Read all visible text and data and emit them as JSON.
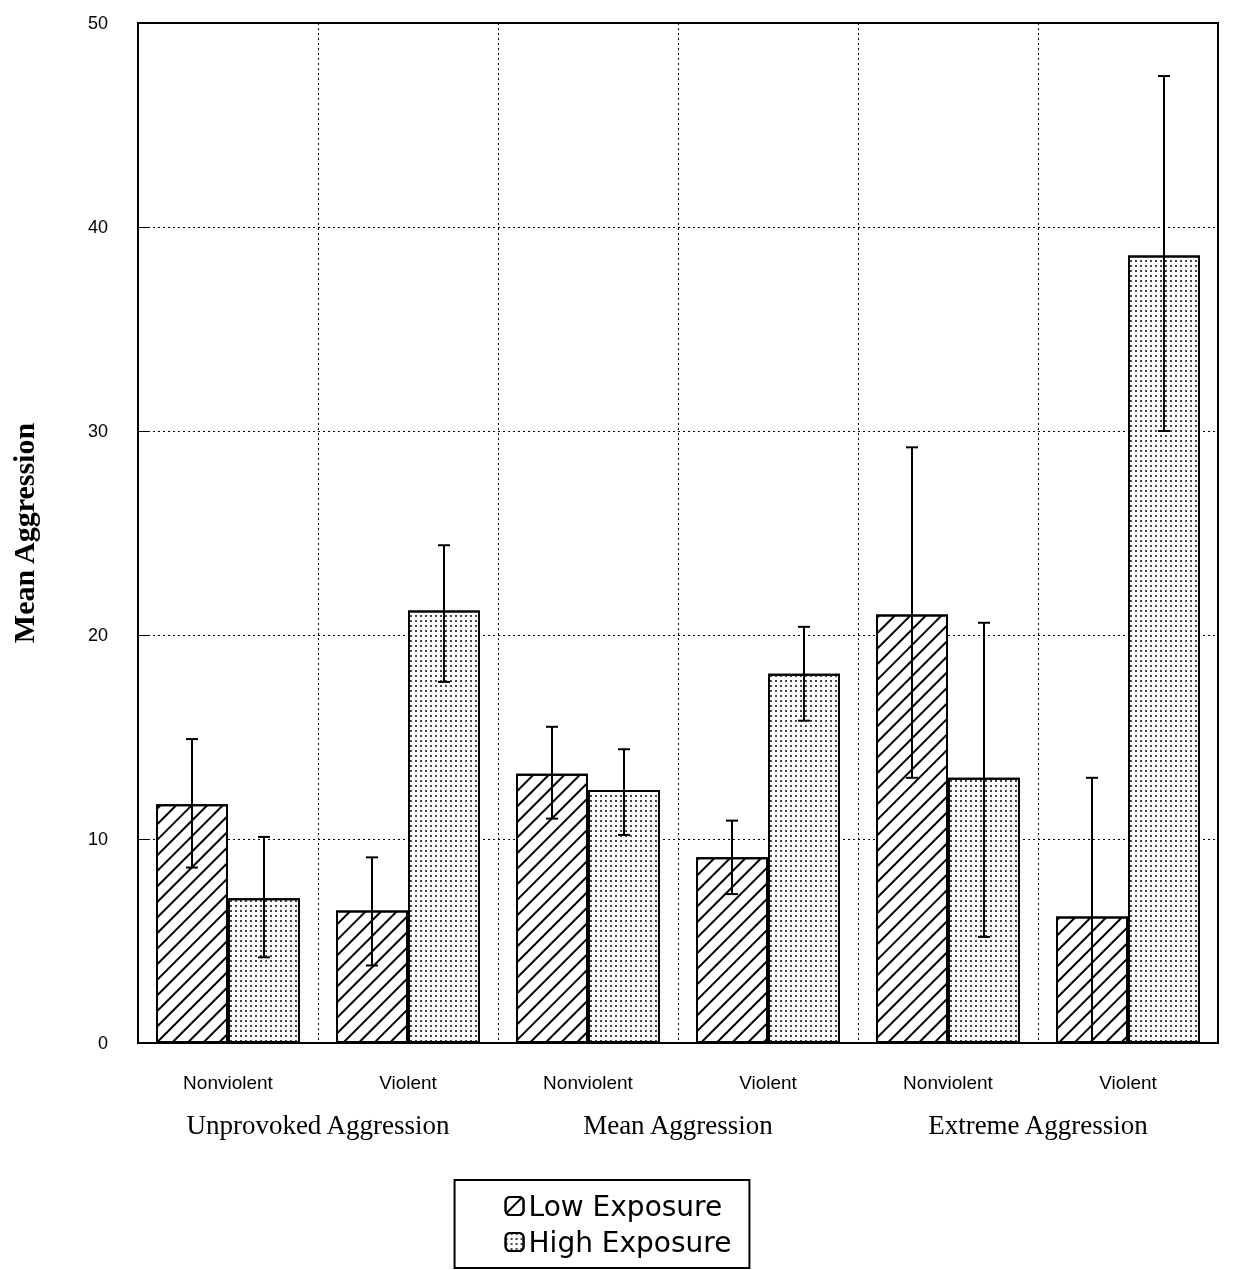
{
  "chart_data": {
    "type": "bar",
    "ylabel": "Mean Aggression",
    "categories": [
      "Nonviolent",
      "Violent",
      "Nonviolent",
      "Violent",
      "Nonviolent",
      "Violent"
    ],
    "series": [
      {
        "name": "Low Exposure",
        "color": "#ffffff",
        "values": [
          11.7,
          6.5,
          13.2,
          9.1,
          21.0,
          6.2
        ],
        "errors": [
          [
            8.6,
            14.9
          ],
          [
            3.8,
            9.1
          ],
          [
            11.0,
            15.5
          ],
          [
            7.3,
            10.9
          ],
          [
            13.0,
            29.2
          ],
          [
            0,
            13.0
          ]
        ]
      },
      {
        "name": "High Exposure",
        "color": "#ffffff",
        "values": [
          7.1,
          21.2,
          12.4,
          18.1,
          13.0,
          38.6
        ],
        "errors": [
          [
            4.2,
            10.1
          ],
          [
            17.7,
            24.4
          ],
          [
            10.2,
            14.4
          ],
          [
            15.8,
            20.4
          ],
          [
            5.2,
            20.6
          ],
          [
            30.0,
            47.4
          ]
        ]
      }
    ],
    "ylim": [
      0,
      50
    ],
    "yticks": [
      0,
      10,
      20,
      30,
      40,
      50
    ],
    "grid": true,
    "legend": "bottom",
    "annotations": [
      "Unprovoked Aggression",
      "Mean Aggression",
      "Extreme Aggression"
    ]
  }
}
